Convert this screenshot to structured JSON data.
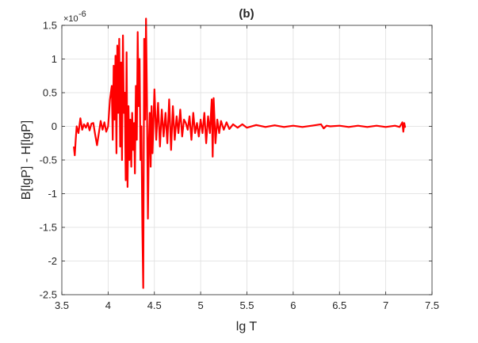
{
  "chart_data": {
    "type": "line",
    "title": "(b)",
    "xlabel": "lg T",
    "ylabel": "B[lgP] - H[lgP]",
    "y_exponent_label": "×10",
    "y_exponent_power": "-6",
    "xlim": [
      3.5,
      7.5
    ],
    "ylim": [
      -2.5,
      1.5
    ],
    "x_ticks": [
      "3.5",
      "4",
      "4.5",
      "5",
      "5.5",
      "6",
      "6.5",
      "7",
      "7.5"
    ],
    "y_ticks": [
      "-2.5",
      "-2",
      "-1.5",
      "-1",
      "-0.5",
      "0",
      "0.5",
      "1",
      "1.5"
    ],
    "x_tick_values": [
      3.5,
      4,
      4.5,
      5,
      5.5,
      6,
      6.5,
      7,
      7.5
    ],
    "y_tick_values": [
      -2.5,
      -2,
      -1.5,
      -1,
      -0.5,
      0,
      0.5,
      1,
      1.5
    ],
    "grid": true,
    "line_color": "#ff0000",
    "series": [
      {
        "x": [
          3.63,
          3.64,
          3.65,
          3.66,
          3.68,
          3.7,
          3.72,
          3.74,
          3.76,
          3.78,
          3.8,
          3.82,
          3.84,
          3.86,
          3.88,
          3.9,
          3.92,
          3.94,
          3.96,
          3.98,
          4.0,
          4.02,
          4.04,
          4.05,
          4.06,
          4.07,
          4.08,
          4.09,
          4.1,
          4.11,
          4.12,
          4.13,
          4.14,
          4.15,
          4.16,
          4.17,
          4.18,
          4.19,
          4.2,
          4.21,
          4.22,
          4.23,
          4.24,
          4.25,
          4.26,
          4.27,
          4.28,
          4.29,
          4.3,
          4.31,
          4.32,
          4.33,
          4.34,
          4.35,
          4.36,
          4.37,
          4.38,
          4.39,
          4.4,
          4.41,
          4.42,
          4.43,
          4.44,
          4.45,
          4.46,
          4.47,
          4.48,
          4.5,
          4.52,
          4.54,
          4.56,
          4.58,
          4.6,
          4.62,
          4.64,
          4.66,
          4.68,
          4.7,
          4.72,
          4.74,
          4.76,
          4.78,
          4.8,
          4.82,
          4.84,
          4.86,
          4.88,
          4.9,
          4.92,
          4.94,
          4.96,
          4.98,
          5.0,
          5.02,
          5.04,
          5.06,
          5.08,
          5.1,
          5.12,
          5.13,
          5.14,
          5.16,
          5.18,
          5.2,
          5.22,
          5.25,
          5.28,
          5.31,
          5.35,
          5.4,
          5.45,
          5.5,
          5.6,
          5.7,
          5.8,
          5.9,
          6.0,
          6.1,
          6.2,
          6.3,
          6.33,
          6.36,
          6.4,
          6.5,
          6.6,
          6.7,
          6.8,
          6.9,
          7.0,
          7.1,
          7.15,
          7.18,
          7.19,
          7.2,
          7.21
        ],
        "y": [
          -0.3,
          -0.43,
          -0.2,
          0.0,
          -0.1,
          0.12,
          -0.05,
          0.03,
          -0.02,
          0.05,
          -0.06,
          0.04,
          0.05,
          -0.12,
          -0.28,
          -0.1,
          0.08,
          -0.05,
          0.06,
          -0.08,
          0.0,
          0.4,
          0.6,
          -0.2,
          0.9,
          0.1,
          1.05,
          -0.4,
          1.2,
          0.2,
          1.3,
          -0.3,
          0.95,
          -0.5,
          1.35,
          0.2,
          0.5,
          -0.8,
          1.1,
          -0.9,
          0.3,
          -0.5,
          0.1,
          -0.6,
          0.2,
          -0.35,
          0.05,
          -0.7,
          0.6,
          -0.2,
          1.4,
          0.3,
          1.0,
          -0.5,
          0.0,
          -1.5,
          -2.4,
          1.3,
          0.1,
          1.6,
          0.4,
          -1.37,
          -0.3,
          0.2,
          -0.6,
          0.3,
          -0.4,
          0.55,
          -0.2,
          0.35,
          -0.3,
          0.25,
          -0.15,
          0.2,
          -0.25,
          0.4,
          -0.35,
          0.3,
          -0.2,
          0.15,
          -0.1,
          0.25,
          -0.15,
          0.1,
          0.05,
          -0.05,
          0.15,
          -0.2,
          0.2,
          -0.1,
          0.05,
          -0.15,
          0.1,
          -0.1,
          0.2,
          -0.25,
          0.15,
          -0.1,
          0.4,
          -0.45,
          0.42,
          -0.25,
          0.1,
          -0.1,
          0.08,
          -0.05,
          0.06,
          -0.04,
          0.03,
          -0.02,
          0.03,
          -0.02,
          0.02,
          -0.01,
          0.015,
          -0.01,
          0.01,
          -0.01,
          0.01,
          0.03,
          -0.03,
          0.01,
          0.0,
          0.01,
          -0.01,
          0.01,
          -0.01,
          0.01,
          -0.01,
          0.01,
          -0.01,
          0.06,
          -0.08,
          0.05,
          -0.02
        ]
      }
    ]
  }
}
